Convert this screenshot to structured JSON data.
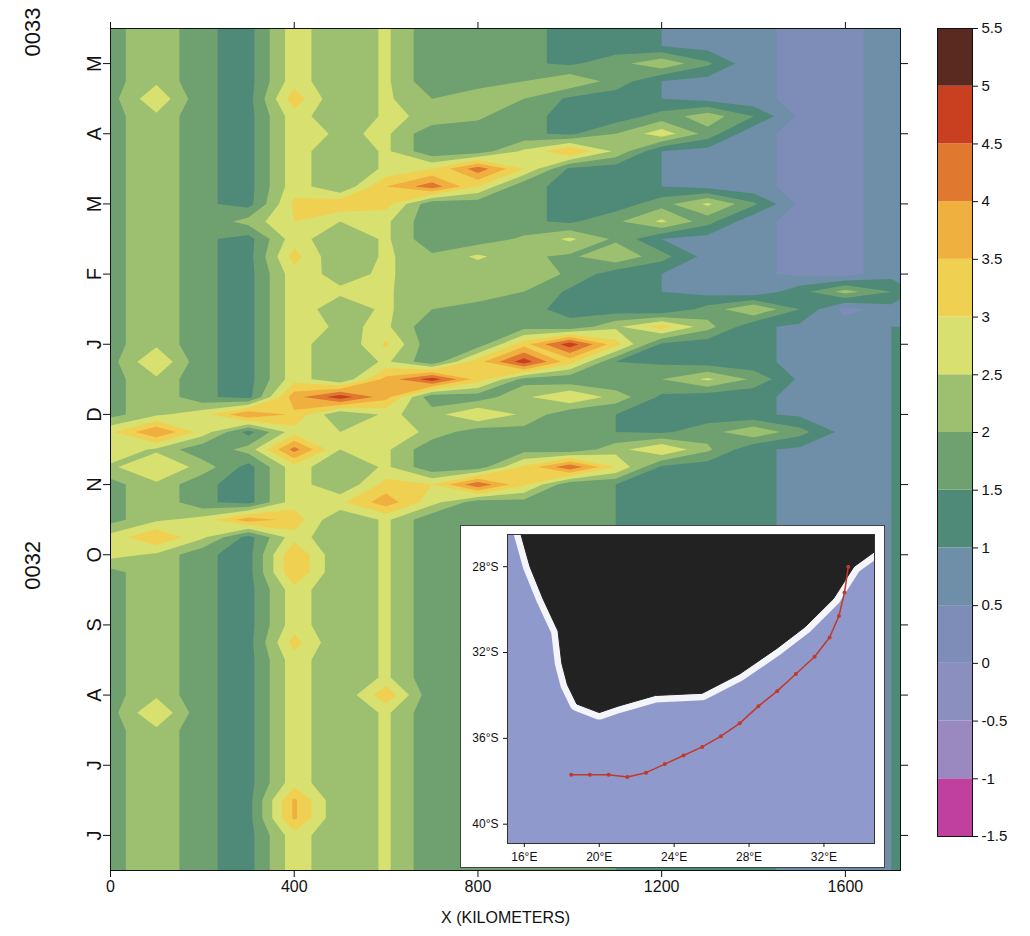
{
  "chart_data": [
    {
      "type": "heatmap",
      "xlabel": "X (KILOMETERS)",
      "xlim": [
        0,
        1720
      ],
      "xticks": [
        0,
        400,
        800,
        1200,
        1600
      ],
      "ylim": [
        0,
        12
      ],
      "yticks": [
        {
          "value": 0.5,
          "label": "J"
        },
        {
          "value": 1.5,
          "label": "J"
        },
        {
          "value": 2.5,
          "label": "A"
        },
        {
          "value": 3.5,
          "label": "S"
        },
        {
          "value": 4.5,
          "label": "O"
        },
        {
          "value": 5.5,
          "label": "N"
        },
        {
          "value": 6.5,
          "label": "D"
        },
        {
          "value": 7.5,
          "label": "J"
        },
        {
          "value": 8.5,
          "label": "F"
        },
        {
          "value": 9.5,
          "label": "M"
        },
        {
          "value": 10.5,
          "label": "A"
        },
        {
          "value": 11.5,
          "label": "M"
        }
      ],
      "annotations": [
        {
          "text": "0032",
          "y": 4.0
        },
        {
          "text": "0033",
          "y": 11.6
        }
      ],
      "x": [
        0,
        100,
        200,
        300,
        400,
        500,
        600,
        700,
        800,
        900,
        1000,
        1100,
        1200,
        1300,
        1400,
        1500,
        1600,
        1700
      ],
      "y": [
        0,
        0.25,
        0.5,
        0.75,
        1,
        1.25,
        1.5,
        1.75,
        2,
        2.25,
        2.5,
        2.75,
        3,
        3.25,
        3.5,
        3.75,
        4,
        4.25,
        4.5,
        4.75,
        5,
        5.25,
        5.5,
        5.75,
        6,
        6.25,
        6.5,
        6.75,
        7,
        7.25,
        7.5,
        7.75,
        8,
        8.25,
        8.5,
        8.75,
        9,
        9.25,
        9.5,
        9.75,
        10,
        10.25,
        10.5,
        10.75,
        11,
        11.25,
        11.5,
        11.75,
        12
      ],
      "cells": [
        [
          1.8,
          2.4,
          1.6,
          1.3,
          2.8,
          2.0,
          2.6,
          1.6,
          1.7,
          1.8,
          1.6,
          1.5,
          1.4,
          1.2,
          1.1,
          0.9,
          0.8,
          1.0
        ],
        [
          1.8,
          2.4,
          1.6,
          1.3,
          2.8,
          2.0,
          2.6,
          1.6,
          1.7,
          1.8,
          1.6,
          1.5,
          1.4,
          1.2,
          1.1,
          0.9,
          0.8,
          1.0
        ],
        [
          1.8,
          2.4,
          1.6,
          1.3,
          2.8,
          2.0,
          2.6,
          1.6,
          1.7,
          1.8,
          1.6,
          1.5,
          1.4,
          1.2,
          1.1,
          0.9,
          0.8,
          1.0
        ],
        [
          1.8,
          2.4,
          1.6,
          1.3,
          3.6,
          2.0,
          2.6,
          1.6,
          1.7,
          1.8,
          1.6,
          1.5,
          1.4,
          1.2,
          1.1,
          0.9,
          0.8,
          1.0
        ],
        [
          1.8,
          2.4,
          1.6,
          1.3,
          3.6,
          2.0,
          2.6,
          1.6,
          1.7,
          1.8,
          1.6,
          1.5,
          1.4,
          1.2,
          1.1,
          0.9,
          0.8,
          1.0
        ],
        [
          1.8,
          2.4,
          1.6,
          1.3,
          2.8,
          2.0,
          2.6,
          1.6,
          1.7,
          1.8,
          1.6,
          1.5,
          1.4,
          1.2,
          1.1,
          0.9,
          0.8,
          1.0
        ],
        [
          1.8,
          2.4,
          1.6,
          1.3,
          2.8,
          2.0,
          2.6,
          1.6,
          1.7,
          1.8,
          1.6,
          1.5,
          1.4,
          1.2,
          1.1,
          0.9,
          0.8,
          1.0
        ],
        [
          1.8,
          2.4,
          1.6,
          1.3,
          2.8,
          2.0,
          2.6,
          1.6,
          1.7,
          1.8,
          1.6,
          1.5,
          1.4,
          1.2,
          1.1,
          0.9,
          0.8,
          1.0
        ],
        [
          1.8,
          2.4,
          1.6,
          1.3,
          2.8,
          2.0,
          2.6,
          1.6,
          1.7,
          1.8,
          1.6,
          1.5,
          1.4,
          1.2,
          1.1,
          0.9,
          0.8,
          1.0
        ],
        [
          1.8,
          3.0,
          1.6,
          1.3,
          2.8,
          2.0,
          2.6,
          1.6,
          1.7,
          1.8,
          1.6,
          1.5,
          1.4,
          1.2,
          1.1,
          0.9,
          0.8,
          1.0
        ],
        [
          1.8,
          2.4,
          1.6,
          1.3,
          2.8,
          2.0,
          3.4,
          1.6,
          1.7,
          1.8,
          1.6,
          1.5,
          1.4,
          1.2,
          1.1,
          0.9,
          0.8,
          1.0
        ],
        [
          1.8,
          2.4,
          1.6,
          1.3,
          2.8,
          2.0,
          2.6,
          1.6,
          1.7,
          1.8,
          1.6,
          1.5,
          1.4,
          1.2,
          1.1,
          0.9,
          0.8,
          1.0
        ],
        [
          1.8,
          2.4,
          1.6,
          1.3,
          2.8,
          2.0,
          2.6,
          1.6,
          1.7,
          1.8,
          1.6,
          1.5,
          1.4,
          1.2,
          1.1,
          0.9,
          0.8,
          1.0
        ],
        [
          1.8,
          2.4,
          1.6,
          1.3,
          3.2,
          2.0,
          2.6,
          1.6,
          1.7,
          1.8,
          1.6,
          1.5,
          1.4,
          1.2,
          1.1,
          0.9,
          0.8,
          1.0
        ],
        [
          1.8,
          2.4,
          1.6,
          1.3,
          2.8,
          2.0,
          2.6,
          1.6,
          1.7,
          1.8,
          1.6,
          1.5,
          1.4,
          1.2,
          1.1,
          0.9,
          0.8,
          1.0
        ],
        [
          1.8,
          2.4,
          1.6,
          1.3,
          2.8,
          2.0,
          2.6,
          1.6,
          1.7,
          1.8,
          1.6,
          1.5,
          1.4,
          1.2,
          1.1,
          0.9,
          0.8,
          1.0
        ],
        [
          1.8,
          2.4,
          1.6,
          1.3,
          2.8,
          2.0,
          2.6,
          1.6,
          1.7,
          1.8,
          1.6,
          1.5,
          1.4,
          1.2,
          1.1,
          0.9,
          0.8,
          1.0
        ],
        [
          1.8,
          2.4,
          1.6,
          1.3,
          3.5,
          2.0,
          2.6,
          1.6,
          1.7,
          1.8,
          1.6,
          1.5,
          1.4,
          1.2,
          1.1,
          0.9,
          0.8,
          1.0
        ],
        [
          2.7,
          2.4,
          1.6,
          1.3,
          3.5,
          2.0,
          2.6,
          1.6,
          1.7,
          1.8,
          1.6,
          1.5,
          1.4,
          1.2,
          1.1,
          0.9,
          0.8,
          1.0
        ],
        [
          2.7,
          3.5,
          2.6,
          1.3,
          2.8,
          2.0,
          2.6,
          1.6,
          1.7,
          1.8,
          1.6,
          1.5,
          1.4,
          1.2,
          1.1,
          0.9,
          0.8,
          1.0
        ],
        [
          1.8,
          2.4,
          2.7,
          3.8,
          3.3,
          2.0,
          2.6,
          1.6,
          1.7,
          1.8,
          1.6,
          1.5,
          1.4,
          1.2,
          1.1,
          0.9,
          0.8,
          1.0
        ],
        [
          1.8,
          2.4,
          1.6,
          1.3,
          2.8,
          2.9,
          3.8,
          2.7,
          1.7,
          1.8,
          1.6,
          1.5,
          1.4,
          1.2,
          1.1,
          0.9,
          0.8,
          1.0
        ],
        [
          1.8,
          2.4,
          1.6,
          1.3,
          2.8,
          2.0,
          3.2,
          3.0,
          4.4,
          3.1,
          1.6,
          1.5,
          1.4,
          1.2,
          1.1,
          0.9,
          0.8,
          1.0
        ],
        [
          2.4,
          3.0,
          2.3,
          1.3,
          2.8,
          2.0,
          2.6,
          1.6,
          1.7,
          3.1,
          4.4,
          3.0,
          1.4,
          1.2,
          1.1,
          0.9,
          0.8,
          1.0
        ],
        [
          2.9,
          2.4,
          1.6,
          2.2,
          4.2,
          2.5,
          2.6,
          1.6,
          1.7,
          1.8,
          1.6,
          2.3,
          3.0,
          2.1,
          1.1,
          0.9,
          0.8,
          1.0
        ],
        [
          2.9,
          4.0,
          2.8,
          1.3,
          2.8,
          2.5,
          3.0,
          2.3,
          1.7,
          1.8,
          1.6,
          1.5,
          1.4,
          1.8,
          2.4,
          1.7,
          0.8,
          1.0
        ],
        [
          1.8,
          2.4,
          2.8,
          4.0,
          3.4,
          2.0,
          2.6,
          2.3,
          3.0,
          2.4,
          1.6,
          1.5,
          1.4,
          1.2,
          1.1,
          0.9,
          0.8,
          1.0
        ],
        [
          1.8,
          2.4,
          1.6,
          1.3,
          3.8,
          4.8,
          3.7,
          1.6,
          1.7,
          2.4,
          3.0,
          2.3,
          1.4,
          1.2,
          1.1,
          0.9,
          0.8,
          1.0
        ],
        [
          1.8,
          2.4,
          1.6,
          1.3,
          2.8,
          2.0,
          3.7,
          4.8,
          3.3,
          1.8,
          1.6,
          1.5,
          2.0,
          2.6,
          1.9,
          0.9,
          0.8,
          1.0
        ],
        [
          1.8,
          3.0,
          1.6,
          1.3,
          2.8,
          2.0,
          2.6,
          1.6,
          3.3,
          4.8,
          3.2,
          1.5,
          1.4,
          1.2,
          1.1,
          0.9,
          0.8,
          1.0
        ],
        [
          1.8,
          2.4,
          1.6,
          1.3,
          2.8,
          2.0,
          3.1,
          1.6,
          1.7,
          3.3,
          4.8,
          3.2,
          1.4,
          1.2,
          1.1,
          0.9,
          0.8,
          1.0
        ],
        [
          1.8,
          2.4,
          1.6,
          1.3,
          2.8,
          2.4,
          2.6,
          1.6,
          1.7,
          1.8,
          1.6,
          2.4,
          3.2,
          2.2,
          1.1,
          0.9,
          0.8,
          1.0
        ],
        [
          1.8,
          2.4,
          1.6,
          1.3,
          2.8,
          2.2,
          2.6,
          2.0,
          1.7,
          1.6,
          1.4,
          1.2,
          1.0,
          1.7,
          2.5,
          1.5,
          0.3,
          0.8
        ],
        [
          1.8,
          2.4,
          1.6,
          1.3,
          2.8,
          2.6,
          2.6,
          2.0,
          2.4,
          2.0,
          1.4,
          1.2,
          1.0,
          0.8,
          0.6,
          1.3,
          2.2,
          1.5
        ],
        [
          1.8,
          2.4,
          1.6,
          1.3,
          2.8,
          2.3,
          2.6,
          2.1,
          2.1,
          2.4,
          1.9,
          1.2,
          1.0,
          0.8,
          0.6,
          0.4,
          0.3,
          0.8
        ],
        [
          1.8,
          2.4,
          1.6,
          1.3,
          3.2,
          2.0,
          2.6,
          2.1,
          2.6,
          2.1,
          1.9,
          2.4,
          1.7,
          0.8,
          0.6,
          0.4,
          0.3,
          0.8
        ],
        [
          1.8,
          2.4,
          1.6,
          1.3,
          2.8,
          2.0,
          2.6,
          1.6,
          1.7,
          2.1,
          2.6,
          1.9,
          1.0,
          0.8,
          0.6,
          0.4,
          0.3,
          0.8
        ],
        [
          1.8,
          2.4,
          1.6,
          2.2,
          3.0,
          2.5,
          2.6,
          1.6,
          1.7,
          1.6,
          1.4,
          1.9,
          2.6,
          1.7,
          0.6,
          0.4,
          0.3,
          0.8
        ],
        [
          1.8,
          2.4,
          1.6,
          1.3,
          3.1,
          3.4,
          3.2,
          1.6,
          1.7,
          1.6,
          1.4,
          1.2,
          1.8,
          2.6,
          1.6,
          0.4,
          0.3,
          0.8
        ],
        [
          1.8,
          2.4,
          1.6,
          1.3,
          2.8,
          2.0,
          3.5,
          4.3,
          3.0,
          1.6,
          1.4,
          1.2,
          1.0,
          0.8,
          0.6,
          0.4,
          0.3,
          0.8
        ],
        [
          1.8,
          2.4,
          1.6,
          1.3,
          2.8,
          2.0,
          2.6,
          3.0,
          4.3,
          3.0,
          1.4,
          1.2,
          1.0,
          0.8,
          0.6,
          0.4,
          0.3,
          0.8
        ],
        [
          1.8,
          2.4,
          1.6,
          1.3,
          2.8,
          2.0,
          2.6,
          1.6,
          1.7,
          2.6,
          3.5,
          2.4,
          1.0,
          0.8,
          0.6,
          0.4,
          0.3,
          0.8
        ],
        [
          1.8,
          2.4,
          1.6,
          1.3,
          2.8,
          2.4,
          2.6,
          1.6,
          1.7,
          1.6,
          1.4,
          2.0,
          2.8,
          1.8,
          0.6,
          0.4,
          0.3,
          0.8
        ],
        [
          1.8,
          2.4,
          1.6,
          1.3,
          2.8,
          2.0,
          2.6,
          2.4,
          2.1,
          1.6,
          1.4,
          1.2,
          1.7,
          2.3,
          1.5,
          0.4,
          0.3,
          0.8
        ],
        [
          1.8,
          2.9,
          1.6,
          1.3,
          3.3,
          2.0,
          2.6,
          2.0,
          2.4,
          2.0,
          1.4,
          1.2,
          1.0,
          0.8,
          0.6,
          0.4,
          0.3,
          0.8
        ],
        [
          1.8,
          2.4,
          1.6,
          1.3,
          2.8,
          2.0,
          2.6,
          1.6,
          1.7,
          2.0,
          2.4,
          1.8,
          1.0,
          0.8,
          0.6,
          0.4,
          0.3,
          0.8
        ],
        [
          1.8,
          2.4,
          1.6,
          1.3,
          2.8,
          2.0,
          2.6,
          1.6,
          1.7,
          1.6,
          1.4,
          1.8,
          2.4,
          1.6,
          0.6,
          0.4,
          0.3,
          0.8
        ],
        [
          1.8,
          2.4,
          1.6,
          1.3,
          2.8,
          2.0,
          2.6,
          1.6,
          1.7,
          1.6,
          1.4,
          1.2,
          1.0,
          0.8,
          0.6,
          0.4,
          0.3,
          0.8
        ],
        [
          1.8,
          2.4,
          1.6,
          1.3,
          2.8,
          2.0,
          2.6,
          1.6,
          1.7,
          1.6,
          1.4,
          1.2,
          1.0,
          0.8,
          0.6,
          0.4,
          0.3,
          0.8
        ]
      ],
      "colorbar": {
        "range": [
          -1.5,
          5.5
        ],
        "ticks": [
          -1.5,
          -1,
          -0.5,
          0,
          0.5,
          1,
          1.5,
          2,
          2.5,
          3,
          3.5,
          4,
          4.5,
          5,
          5.5
        ],
        "colors": [
          "#c040a0",
          "#9a88c0",
          "#8a8fc0",
          "#7d8db8",
          "#6f8ea8",
          "#4f8a78",
          "#6fa070",
          "#9cc070",
          "#d8e070",
          "#f0d050",
          "#f0b040",
          "#e07830",
          "#c84020",
          "#5a2a20"
        ]
      }
    },
    {
      "type": "map",
      "xlim": [
        15.1,
        34.7
      ],
      "ylim": [
        -40.9,
        -26.5
      ],
      "xticks": [
        {
          "value": 16,
          "label": "16°E"
        },
        {
          "value": 20,
          "label": "20°E"
        },
        {
          "value": 24,
          "label": "24°E"
        },
        {
          "value": 28,
          "label": "28°E"
        },
        {
          "value": 32,
          "label": "32°E"
        }
      ],
      "yticks": [
        {
          "value": -28,
          "label": "28°S"
        },
        {
          "value": -32,
          "label": "32°S"
        },
        {
          "value": -36,
          "label": "36°S"
        },
        {
          "value": -40,
          "label": "40°S"
        }
      ],
      "land": [
        [
          15.5,
          -25.5
        ],
        [
          35.5,
          -25.5
        ],
        [
          35.5,
          -26.8
        ],
        [
          33.6,
          -28.0
        ],
        [
          32.5,
          -29.5
        ],
        [
          31.0,
          -30.8
        ],
        [
          29.5,
          -31.8
        ],
        [
          27.5,
          -33.0
        ],
        [
          25.5,
          -33.9
        ],
        [
          23.0,
          -34.0
        ],
        [
          21.0,
          -34.5
        ],
        [
          20.0,
          -34.8
        ],
        [
          18.8,
          -34.4
        ],
        [
          18.3,
          -33.5
        ],
        [
          18.0,
          -32.5
        ],
        [
          17.8,
          -31.0
        ],
        [
          17.0,
          -29.5
        ],
        [
          16.3,
          -28.0
        ],
        [
          15.5,
          -25.5
        ]
      ],
      "track": [
        [
          18.5,
          -37.7
        ],
        [
          19.5,
          -37.7
        ],
        [
          20.5,
          -37.7
        ],
        [
          21.5,
          -37.8
        ],
        [
          22.5,
          -37.6
        ],
        [
          23.5,
          -37.2
        ],
        [
          24.5,
          -36.8
        ],
        [
          25.5,
          -36.4
        ],
        [
          26.5,
          -35.9
        ],
        [
          27.5,
          -35.3
        ],
        [
          28.5,
          -34.5
        ],
        [
          29.5,
          -33.8
        ],
        [
          30.5,
          -33.0
        ],
        [
          31.5,
          -32.2
        ],
        [
          32.3,
          -31.3
        ],
        [
          32.8,
          -30.3
        ],
        [
          33.1,
          -29.2
        ],
        [
          33.3,
          -28.0
        ]
      ],
      "color": "#c0392b"
    }
  ]
}
